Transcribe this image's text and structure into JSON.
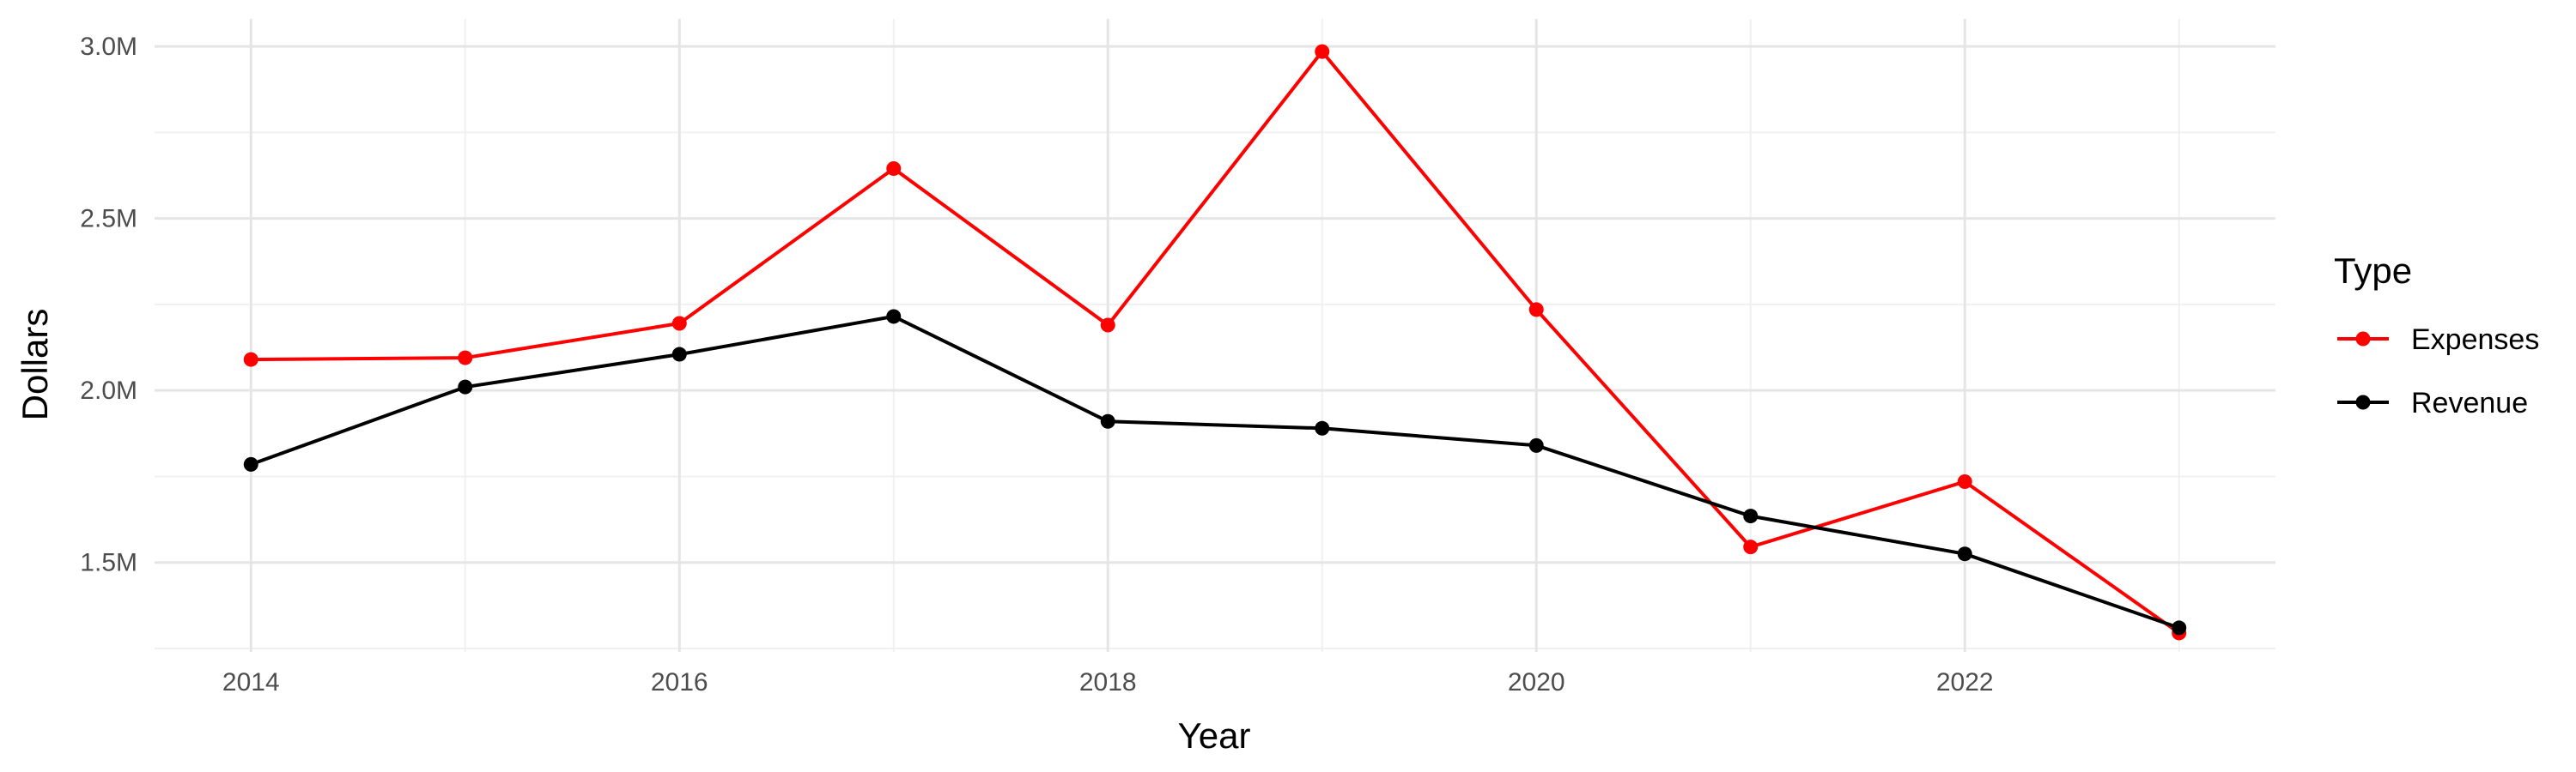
{
  "chart_data": {
    "type": "line",
    "xlabel": "Year",
    "ylabel": "Dollars",
    "x": [
      2014,
      2015,
      2016,
      2017,
      2018,
      2019,
      2020,
      2021,
      2022,
      2023
    ],
    "xlim": [
      2013.55,
      2023.45
    ],
    "ylim": [
      1.24,
      3.08
    ],
    "x_ticks": [
      2014,
      2016,
      2018,
      2020,
      2022
    ],
    "x_tick_labels": [
      "2014",
      "2016",
      "2018",
      "2020",
      "2022"
    ],
    "y_ticks": [
      1.5,
      2.0,
      2.5,
      3.0
    ],
    "y_tick_labels": [
      "1.5M",
      "2.0M",
      "2.5M",
      "3.0M"
    ],
    "y_unit": "millions of dollars",
    "grid": true,
    "legend": {
      "title": "Type",
      "position": "right"
    },
    "series": [
      {
        "name": "Expenses",
        "color": "#ff0000",
        "values": [
          2.09,
          2.095,
          2.195,
          2.645,
          2.19,
          2.985,
          2.235,
          1.545,
          1.735,
          1.295
        ]
      },
      {
        "name": "Revenue",
        "color": "#000000",
        "values": [
          1.785,
          2.01,
          2.105,
          2.215,
          1.91,
          1.89,
          1.84,
          1.635,
          1.525,
          1.31
        ]
      }
    ]
  }
}
